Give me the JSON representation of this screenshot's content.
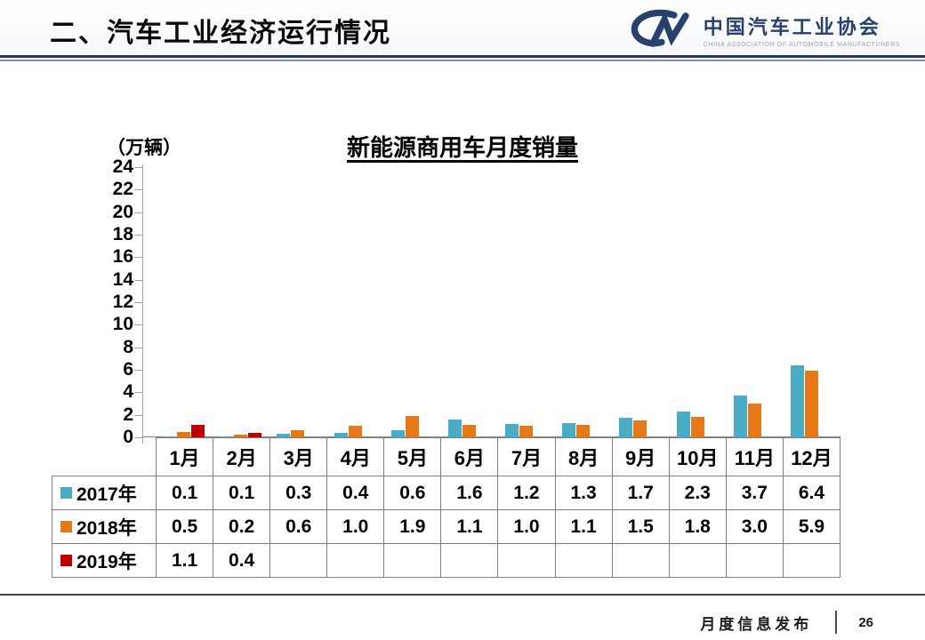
{
  "header": {
    "title": "二、汽车工业经济运行情况",
    "logo": {
      "mark": "CM",
      "name_cn": "中国汽车工业协会",
      "name_en": "CHINA ASSOCIATION OF AUTOMOBILE MANUFACTURERS"
    }
  },
  "chart_data": {
    "type": "bar",
    "title": "新能源商用车月度销量",
    "unit_label": "（万辆）",
    "categories": [
      "1月",
      "2月",
      "3月",
      "4月",
      "5月",
      "6月",
      "7月",
      "8月",
      "9月",
      "10月",
      "11月",
      "12月"
    ],
    "series": [
      {
        "name": "2017年",
        "color": "#4BACC6",
        "values": [
          0.1,
          0.1,
          0.3,
          0.4,
          0.6,
          1.6,
          1.2,
          1.3,
          1.7,
          2.3,
          3.7,
          6.4
        ]
      },
      {
        "name": "2018年",
        "color": "#E67817",
        "values": [
          0.5,
          0.2,
          0.6,
          1.0,
          1.9,
          1.1,
          1.0,
          1.1,
          1.5,
          1.8,
          3.0,
          5.9
        ]
      },
      {
        "name": "2019年",
        "color": "#C00000",
        "values": [
          1.1,
          0.4,
          null,
          null,
          null,
          null,
          null,
          null,
          null,
          null,
          null,
          null
        ]
      }
    ],
    "ylim": [
      0,
      24
    ],
    "ytick_step": 2,
    "yticks": [
      0,
      2,
      4,
      6,
      8,
      10,
      12,
      14,
      16,
      18,
      20,
      22,
      24
    ],
    "grid": false,
    "legend_position": "table-left"
  },
  "footer": {
    "label": "月度信息发布",
    "page_number": "26"
  },
  "colors": {
    "accent_navy": "#1F3864",
    "axis_gray": "#A6A6A6",
    "table_border": "#7F7F7F",
    "series_2017": "#4BACC6",
    "series_2018": "#E67817",
    "series_2019": "#C00000"
  }
}
